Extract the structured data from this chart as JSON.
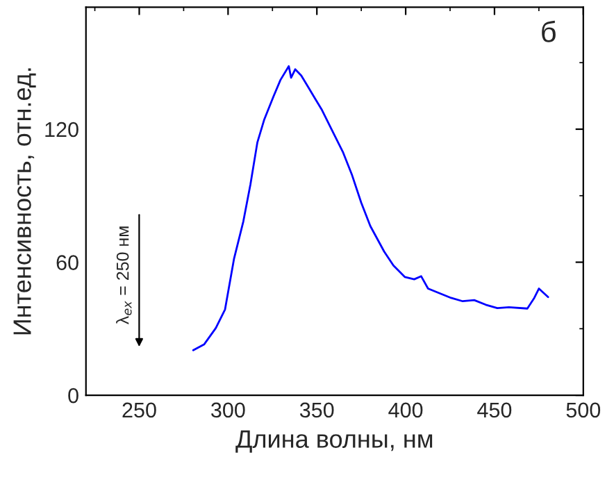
{
  "chart_data": {
    "type": "line",
    "xlabel": "Длина волны, нм",
    "ylabel": "Интенсивность, отн.ед.",
    "xlim": [
      220,
      500
    ],
    "xticks": [
      250,
      300,
      350,
      400,
      450,
      500
    ],
    "ylim": [
      0,
      175
    ],
    "yticks": [
      0,
      60,
      120
    ],
    "grid": false,
    "legend": false,
    "annotations": [
      "б",
      "λ$_{ex}$ = 250 нм"
    ],
    "x": [
      280.4,
      286.6,
      293.1,
      298.3,
      303.4,
      308.6,
      312.6,
      316.5,
      320.4,
      325.6,
      329.5,
      334.2,
      335.5,
      337.8,
      341.2,
      345.1,
      349,
      352.9,
      358.1,
      364.6,
      369.8,
      375,
      380.1,
      387.9,
      393.1,
      399.6,
      404.8,
      408.7,
      412.6,
      419.1,
      425.6,
      432.1,
      438.6,
      445.1,
      451.6,
      458.1,
      468.5,
      472.4,
      475,
      480.2
    ],
    "series": [
      {
        "color": "#0000ff",
        "values": [
          20.3,
          23,
          30.3,
          38.7,
          61.7,
          78.4,
          95.1,
          114,
          124.4,
          134.8,
          142.2,
          148.4,
          143.2,
          147,
          144.2,
          139,
          133.8,
          128.6,
          120.2,
          109.8,
          99.3,
          86.8,
          76.3,
          64.8,
          58.5,
          53.3,
          52.3,
          53.7,
          48.1,
          46,
          43.9,
          42.4,
          42.9,
          40.8,
          39.3,
          39.7,
          39.1,
          43.9,
          48.1,
          44.3
        ]
      }
    ]
  }
}
